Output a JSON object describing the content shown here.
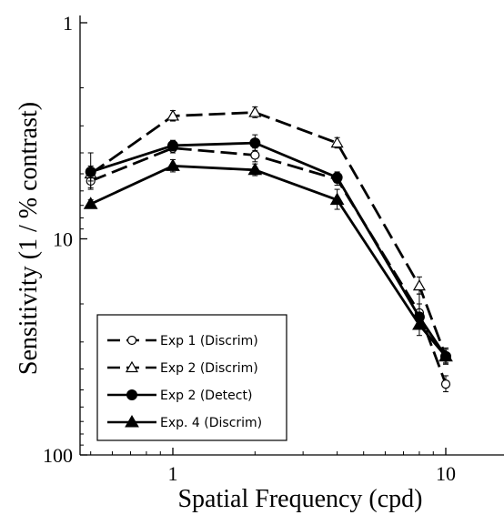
{
  "chart_data": {
    "type": "line",
    "xlabel": "Spatial Frequency (cpd)",
    "ylabel": "Sensitivity (1 / % contrast)",
    "x_scale": "log",
    "y_scale": "log",
    "y_inverted": true,
    "xlim": [
      0.5,
      17
    ],
    "ylim": [
      1,
      100
    ],
    "x_ticks": [
      1,
      10
    ],
    "x_tick_labels": [
      "1",
      "10"
    ],
    "y_ticks": [
      1,
      10,
      100
    ],
    "y_tick_labels": [
      "1",
      "10",
      "100"
    ],
    "grid": false,
    "legend_position": "bottom-left",
    "series": [
      {
        "name": "Exp 1 (Discrim)",
        "marker": "open-circle",
        "dash": "long-dash",
        "x": [
          0.5,
          1,
          2,
          4,
          8,
          10
        ],
        "y": [
          5.4,
          3.8,
          4.1,
          5.3,
          22,
          47
        ],
        "err": [
          0.5,
          0.2,
          0.3,
          0.35,
          4,
          4
        ]
      },
      {
        "name": "Exp 2 (Discrim)",
        "marker": "open-triangle",
        "dash": "long-dash",
        "x": [
          0.5,
          1,
          2,
          4,
          8,
          10
        ],
        "y": [
          5.0,
          2.7,
          2.6,
          3.6,
          16.5,
          35
        ],
        "err": [
          0.4,
          0.15,
          0.15,
          0.2,
          1.5,
          3
        ]
      },
      {
        "name": "Exp 2 (Detect)",
        "marker": "filled-circle",
        "dash": "solid",
        "x": [
          0.5,
          1,
          2,
          4,
          8,
          10
        ],
        "y": [
          4.9,
          3.7,
          3.6,
          5.2,
          23,
          35
        ],
        "err": [
          0.9,
          0.2,
          0.3,
          0.3,
          3,
          3
        ]
      },
      {
        "name": "Exp. 4 (Discrim)",
        "marker": "filled-triangle",
        "dash": "solid",
        "x": [
          0.5,
          1,
          2,
          4,
          8,
          10
        ],
        "y": [
          6.9,
          4.6,
          4.8,
          6.6,
          25,
          35
        ],
        "err": [
          0.3,
          0.3,
          0.3,
          0.7,
          3,
          2.5
        ]
      }
    ]
  }
}
